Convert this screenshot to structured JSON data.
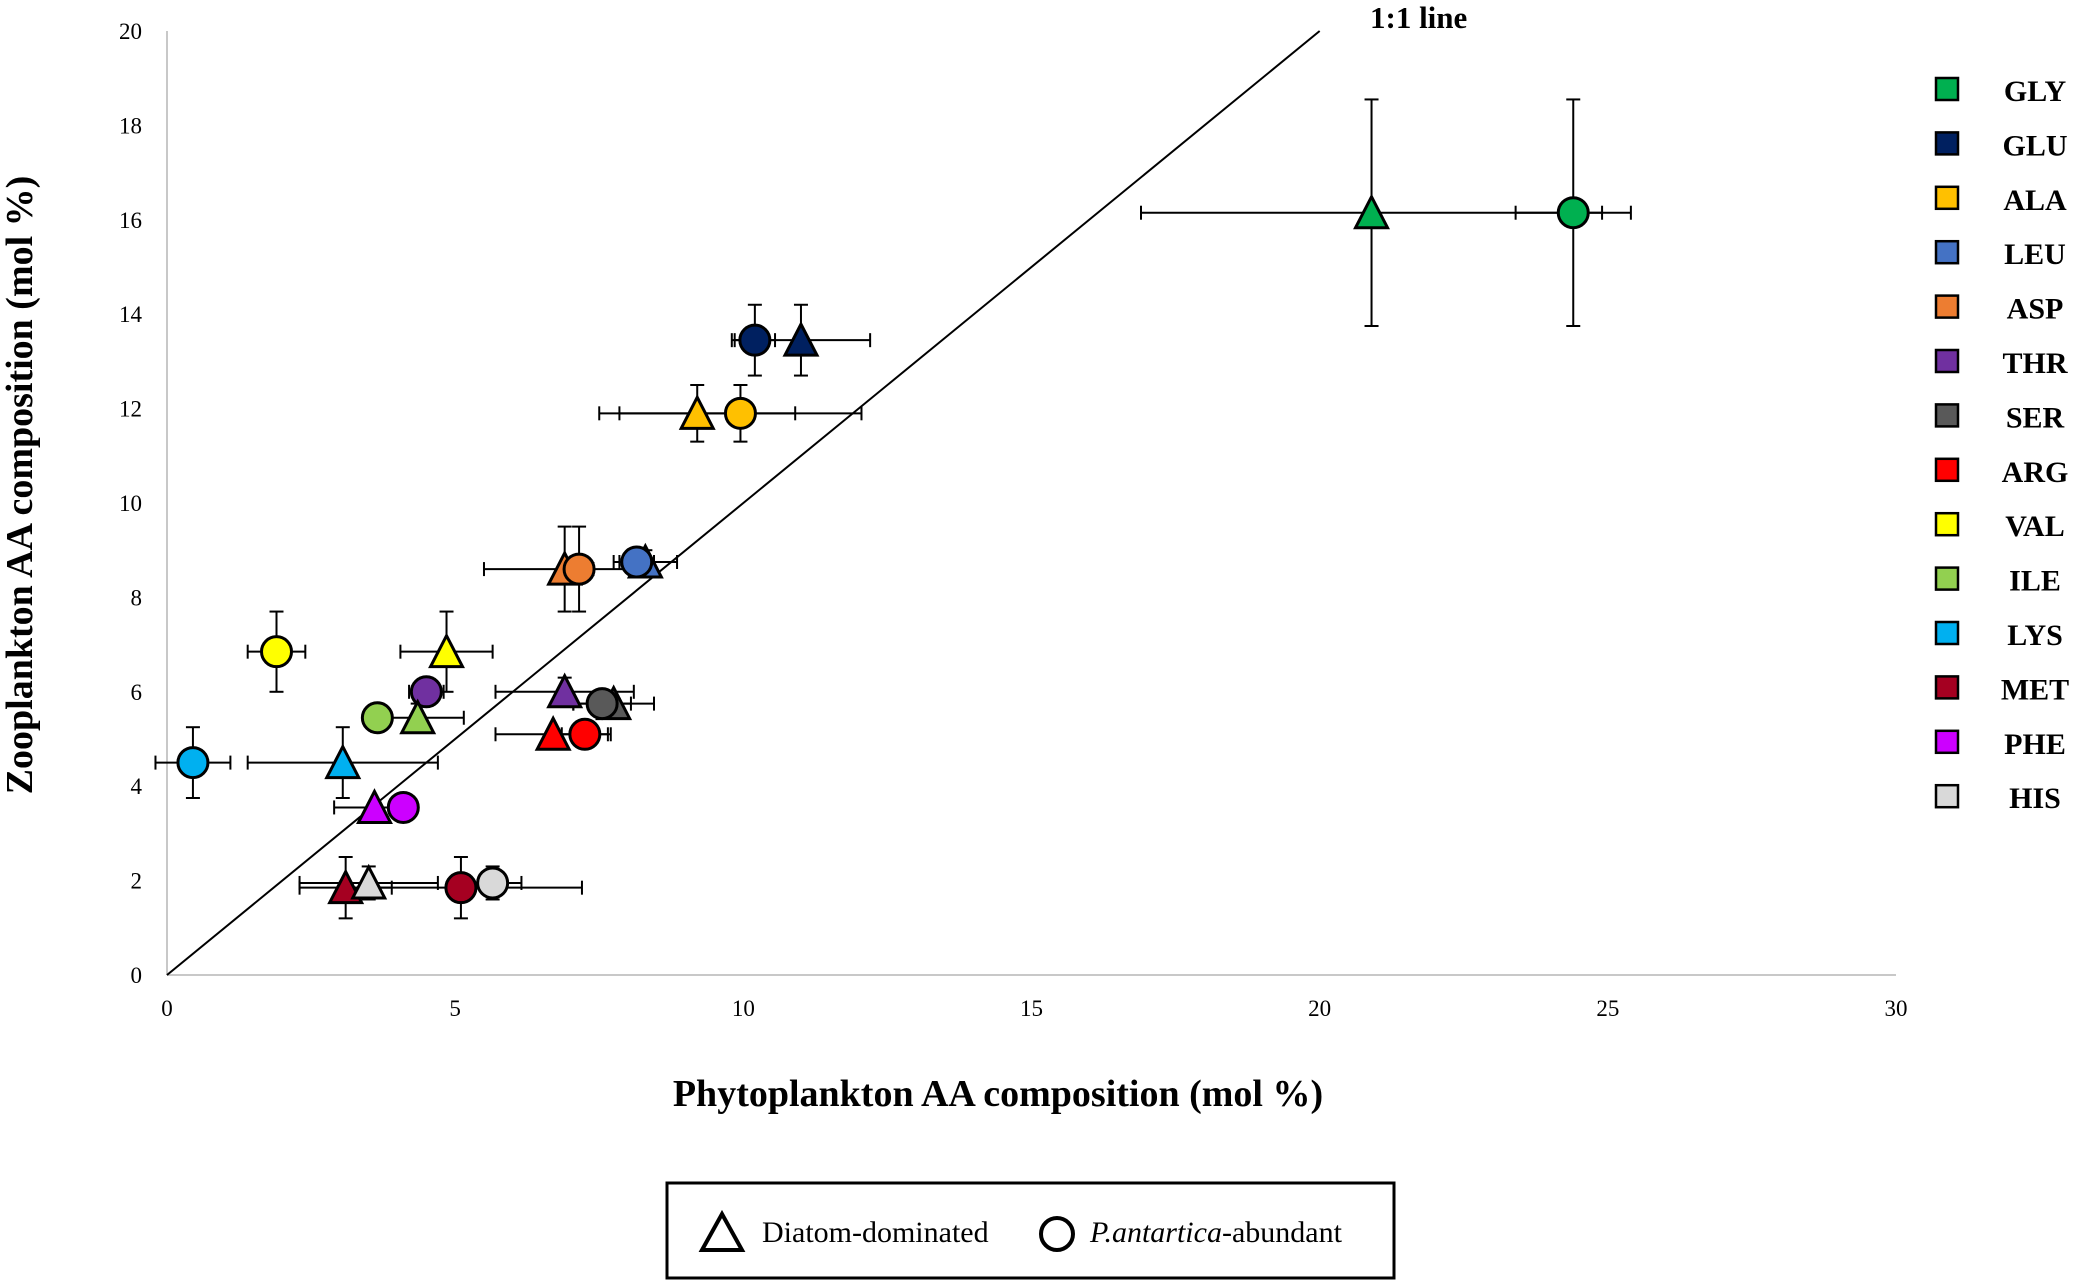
{
  "chart_data": {
    "type": "scatter",
    "title": "",
    "xlabel": "Phytoplankton AA composition (mol %)",
    "ylabel": "Zooplankton AA composition (mol %)",
    "xlim": [
      0,
      30
    ],
    "ylim": [
      0,
      20
    ],
    "xticks": [
      "0",
      "5",
      "10",
      "15",
      "20",
      "25",
      "30"
    ],
    "yticks": [
      "0",
      "2",
      "4",
      "6",
      "8",
      "10",
      "12",
      "14",
      "16",
      "18",
      "20"
    ],
    "grid": false,
    "annotation": "1:1 line",
    "reference_line": {
      "x": [
        0,
        20
      ],
      "y": [
        0,
        20
      ]
    },
    "legend_title_groups": {
      "diatom": "Diatom-dominated",
      "phaeo_italic": "P.antartica",
      "phaeo_rest": "-abundant"
    },
    "series": [
      {
        "name": "GLY",
        "color": "#00b050",
        "diatom": {
          "x": 20.9,
          "y": 16.15,
          "xerr": 4.0,
          "yerr": 2.4
        },
        "phaeo": {
          "x": 24.4,
          "y": 16.15,
          "xerr": 1.0,
          "yerr": 2.4
        }
      },
      {
        "name": "GLU",
        "color": "#002060",
        "diatom": {
          "x": 11.0,
          "y": 13.45,
          "xerr": 1.2,
          "yerr": 0.75
        },
        "phaeo": {
          "x": 10.2,
          "y": 13.45,
          "xerr": 0.35,
          "yerr": 0.75
        }
      },
      {
        "name": "ALA",
        "color": "#ffc000",
        "diatom": {
          "x": 9.2,
          "y": 11.9,
          "xerr": 1.7,
          "yerr": 0.6
        },
        "phaeo": {
          "x": 9.95,
          "y": 11.9,
          "xerr": 2.1,
          "yerr": 0.6
        }
      },
      {
        "name": "LEU",
        "color": "#4472c4",
        "diatom": {
          "x": 8.3,
          "y": 8.75,
          "xerr": 0.55,
          "yerr": 0.25
        },
        "phaeo": {
          "x": 8.15,
          "y": 8.75,
          "xerr": 0.3,
          "yerr": 0.25
        }
      },
      {
        "name": "ASP",
        "color": "#ed7d31",
        "diatom": {
          "x": 6.9,
          "y": 8.6,
          "xerr": 1.4,
          "yerr": 0.9
        },
        "phaeo": {
          "x": 7.15,
          "y": 8.6,
          "xerr": 0.25,
          "yerr": 0.9
        }
      },
      {
        "name": "THR",
        "color": "#7030a0",
        "diatom": {
          "x": 6.9,
          "y": 6.0,
          "xerr": 1.2,
          "yerr": 0.3
        },
        "phaeo": {
          "x": 4.5,
          "y": 6.0,
          "xerr": 0.3,
          "yerr": 0.3
        }
      },
      {
        "name": "SER",
        "color": "#595959",
        "diatom": {
          "x": 7.75,
          "y": 5.75,
          "xerr": 0.7,
          "yerr": 0.1
        },
        "phaeo": {
          "x": 7.55,
          "y": 5.75,
          "xerr": 0.5,
          "yerr": 0.1
        }
      },
      {
        "name": "ARG",
        "color": "#ff0000",
        "diatom": {
          "x": 6.7,
          "y": 5.1,
          "xerr": 1.0,
          "yerr": 0.1
        },
        "phaeo": {
          "x": 7.25,
          "y": 5.1,
          "xerr": 0.4,
          "yerr": 0.1
        }
      },
      {
        "name": "VAL",
        "color": "#ffff00",
        "diatom": {
          "x": 4.85,
          "y": 6.85,
          "xerr": 0.8,
          "yerr": 0.85
        },
        "phaeo": {
          "x": 1.9,
          "y": 6.85,
          "xerr": 0.5,
          "yerr": 0.85
        }
      },
      {
        "name": "ILE",
        "color": "#92d050",
        "diatom": {
          "x": 4.35,
          "y": 5.45,
          "xerr": 0.8,
          "yerr": 0.3
        },
        "phaeo": {
          "x": 3.65,
          "y": 5.45,
          "xerr": 0.2,
          "yerr": 0.3
        }
      },
      {
        "name": "LYS",
        "color": "#00b0f0",
        "diatom": {
          "x": 3.05,
          "y": 4.5,
          "xerr": 1.65,
          "yerr": 0.75
        },
        "phaeo": {
          "x": 0.45,
          "y": 4.5,
          "xerr": 0.65,
          "yerr": 0.75
        }
      },
      {
        "name": "MET",
        "color": "#a50021",
        "diatom": {
          "x": 3.1,
          "y": 1.85,
          "xerr": 0.8,
          "yerr": 0.65
        },
        "phaeo": {
          "x": 5.1,
          "y": 1.85,
          "xerr": 2.1,
          "yerr": 0.65
        }
      },
      {
        "name": "PHE",
        "color": "#cc00ff",
        "diatom": {
          "x": 3.6,
          "y": 3.55,
          "xerr": 0.7,
          "yerr": 0.1
        },
        "phaeo": {
          "x": 4.1,
          "y": 3.55,
          "xerr": 0.1,
          "yerr": 0.1
        }
      },
      {
        "name": "HIS",
        "color": "#d9d9d9",
        "diatom": {
          "x": 3.5,
          "y": 1.95,
          "xerr": 1.2,
          "yerr": 0.35
        },
        "phaeo": {
          "x": 5.65,
          "y": 1.95,
          "xerr": 0.5,
          "yerr": 0.35
        }
      }
    ]
  }
}
